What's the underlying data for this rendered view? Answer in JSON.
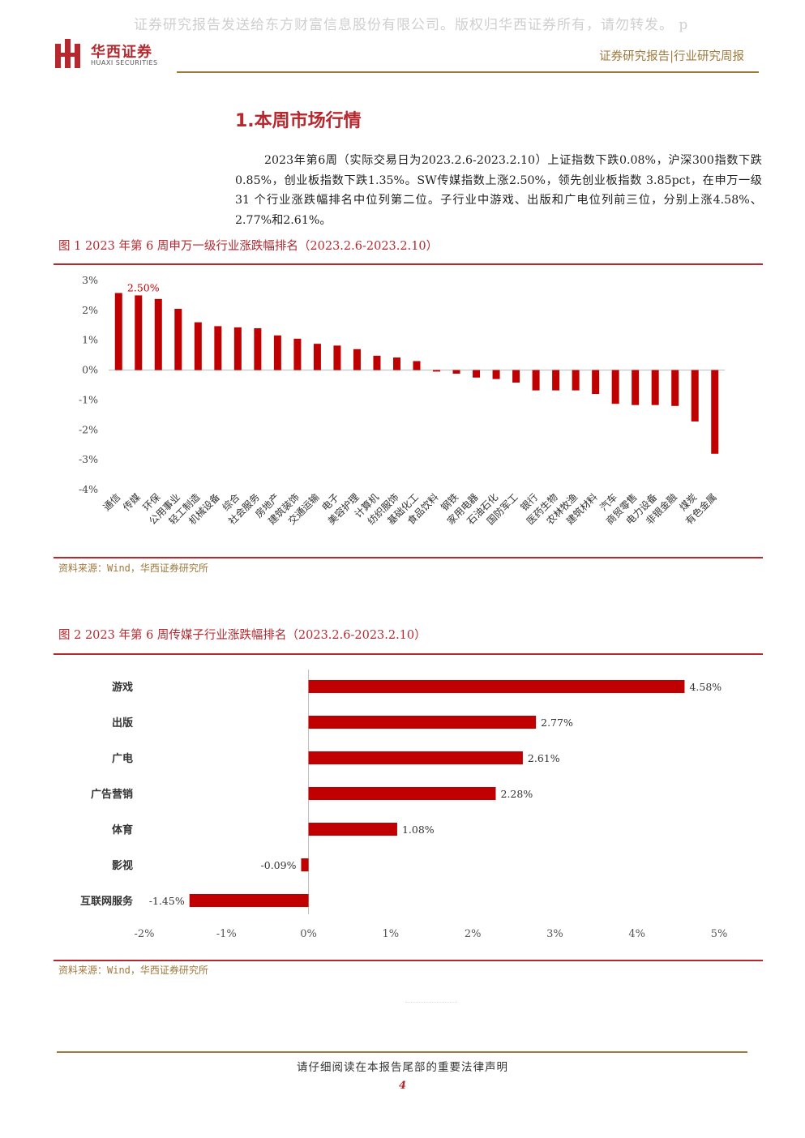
{
  "watermark": "证券研究报告发送给东方财富信息股份有限公司。版权归华西证券所有，请勿转发。 p",
  "header": {
    "logo_cn": "华西证券",
    "logo_en": "HUAXI SECURITIES",
    "right_text": "证券研究报告|行业研究周报"
  },
  "section_title": "1.本周市场行情",
  "body_text": "2023年第6周（实际交易日为2023.2.6-2023.2.10）上证指数下跌0.08%，沪深300指数下跌0.85%，创业板指数下跌1.35%。SW传媒指数上涨2.50%，领先创业板指数 3.85pct，在申万一级 31 个行业涨跌幅排名中位列第二位。子行业中游戏、出版和广电位列前三位，分别上涨4.58%、2.77%和2.61%。",
  "figure1": {
    "title": "图 1 2023 年第 6 周申万一级行业涨跌幅排名（2023.2.6-2023.2.10）",
    "source": "资料来源：Wind，华西证券研究所"
  },
  "figure2": {
    "title": "图 2 2023 年第 6 周传媒子行业涨跌幅排名（2023.2.6-2023.2.10）",
    "source": "资料来源：Wind，华西证券研究所"
  },
  "chart_data": [
    {
      "type": "bar",
      "categories": [
        "通信",
        "传媒",
        "环保",
        "公用事业",
        "轻工制造",
        "机械设备",
        "综合",
        "社会服务",
        "房地产",
        "建筑装饰",
        "交通运输",
        "电子",
        "美容护理",
        "计算机",
        "纺织服饰",
        "基础化工",
        "食品饮料",
        "钢铁",
        "家用电器",
        "石油石化",
        "国防军工",
        "银行",
        "医药生物",
        "农林牧渔",
        "建筑材料",
        "汽车",
        "商贸零售",
        "电力设备",
        "非银金融",
        "煤炭",
        "有色金属"
      ],
      "values": [
        2.58,
        2.5,
        2.38,
        2.05,
        1.6,
        1.47,
        1.43,
        1.4,
        1.16,
        1.05,
        0.88,
        0.82,
        0.7,
        0.48,
        0.42,
        0.3,
        -0.05,
        -0.12,
        -0.25,
        -0.3,
        -0.42,
        -0.68,
        -0.68,
        -0.68,
        -0.8,
        -1.13,
        -1.17,
        -1.17,
        -1.2,
        -1.72,
        -2.8
      ],
      "annotations": [
        {
          "category": "传媒",
          "label": "2.50%"
        }
      ],
      "ylim": [
        -4,
        3
      ],
      "yticks": [
        "3%",
        "2%",
        "1%",
        "0%",
        "-1%",
        "-2%",
        "-3%",
        "-4%"
      ],
      "color": "#c00000",
      "grid": false
    },
    {
      "type": "bar",
      "orientation": "horizontal",
      "categories": [
        "游戏",
        "出版",
        "广电",
        "广告营销",
        "体育",
        "影视",
        "互联网服务"
      ],
      "values": [
        4.58,
        2.77,
        2.61,
        2.28,
        1.08,
        -0.09,
        -1.45
      ],
      "value_labels": [
        "4.58%",
        "2.77%",
        "2.61%",
        "2.28%",
        "1.08%",
        "-0.09%",
        "-1.45%"
      ],
      "xlim": [
        -2,
        5
      ],
      "xticks": [
        "-2%",
        "-1%",
        "0%",
        "1%",
        "2%",
        "3%",
        "4%",
        "5%"
      ],
      "color": "#c00000",
      "grid": false
    }
  ]
}
